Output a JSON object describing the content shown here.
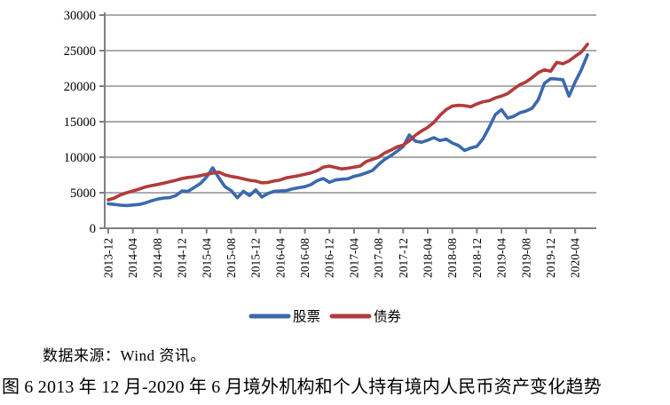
{
  "chart_data": {
    "type": "line",
    "title": "",
    "xlabel": "",
    "ylabel": "",
    "ylim": [
      0,
      30000
    ],
    "y_ticks": [
      0,
      5000,
      10000,
      15000,
      20000,
      25000,
      30000
    ],
    "x_tick_every": 4,
    "grid": true,
    "legend_position": "bottom",
    "x": [
      "2013-12",
      "2014-01",
      "2014-02",
      "2014-03",
      "2014-04",
      "2014-05",
      "2014-06",
      "2014-07",
      "2014-08",
      "2014-09",
      "2014-10",
      "2014-11",
      "2014-12",
      "2015-01",
      "2015-02",
      "2015-03",
      "2015-04",
      "2015-05",
      "2015-06",
      "2015-07",
      "2015-08",
      "2015-09",
      "2015-10",
      "2015-11",
      "2015-12",
      "2016-01",
      "2016-02",
      "2016-03",
      "2016-04",
      "2016-05",
      "2016-06",
      "2016-07",
      "2016-08",
      "2016-09",
      "2016-10",
      "2016-11",
      "2016-12",
      "2017-01",
      "2017-02",
      "2017-03",
      "2017-04",
      "2017-05",
      "2017-06",
      "2017-07",
      "2017-08",
      "2017-09",
      "2017-10",
      "2017-11",
      "2017-12",
      "2018-01",
      "2018-02",
      "2018-03",
      "2018-04",
      "2018-05",
      "2018-06",
      "2018-07",
      "2018-08",
      "2018-09",
      "2018-10",
      "2018-11",
      "2018-12",
      "2019-01",
      "2019-02",
      "2019-03",
      "2019-04",
      "2019-05",
      "2019-06",
      "2019-07",
      "2019-08",
      "2019-09",
      "2019-10",
      "2019-11",
      "2019-12",
      "2020-01",
      "2020-02",
      "2020-03",
      "2020-04",
      "2020-05",
      "2020-06"
    ],
    "series": [
      {
        "name": "股票",
        "color": "#3B69AD",
        "values": [
          3450,
          3350,
          3250,
          3200,
          3280,
          3350,
          3550,
          3850,
          4100,
          4250,
          4300,
          4600,
          5250,
          5200,
          5750,
          6300,
          7200,
          8500,
          7100,
          5850,
          5300,
          4300,
          5200,
          4600,
          5400,
          4400,
          4900,
          5200,
          5250,
          5300,
          5550,
          5700,
          5850,
          6150,
          6700,
          7000,
          6460,
          6800,
          6900,
          6960,
          7300,
          7500,
          7800,
          8130,
          8960,
          9700,
          10210,
          10840,
          11500,
          13130,
          12250,
          12100,
          12400,
          12750,
          12350,
          12550,
          12000,
          11650,
          10950,
          11300,
          11520,
          12600,
          14200,
          16000,
          16700,
          15500,
          15750,
          16250,
          16500,
          16900,
          18100,
          20400,
          21050,
          21000,
          20900,
          18600,
          20600,
          22300,
          24400
        ]
      },
      {
        "name": "债券",
        "color": "#B23B3C",
        "values": [
          4000,
          4250,
          4700,
          5000,
          5250,
          5500,
          5800,
          6000,
          6150,
          6350,
          6550,
          6750,
          7000,
          7150,
          7250,
          7400,
          7600,
          7750,
          7900,
          7500,
          7300,
          7150,
          6950,
          6750,
          6650,
          6400,
          6450,
          6650,
          6800,
          7100,
          7250,
          7400,
          7600,
          7800,
          8100,
          8600,
          8750,
          8550,
          8350,
          8450,
          8600,
          8750,
          9400,
          9700,
          10000,
          10600,
          11000,
          11450,
          11700,
          12300,
          13100,
          13700,
          14200,
          14900,
          15900,
          16700,
          17200,
          17300,
          17250,
          17100,
          17500,
          17800,
          17950,
          18350,
          18600,
          18950,
          19600,
          20200,
          20600,
          21200,
          21900,
          22300,
          22100,
          23350,
          23150,
          23550,
          24200,
          24800,
          25900
        ]
      }
    ]
  },
  "legend": {
    "item1": "股票",
    "item2": "债券"
  },
  "source_note": "数据来源：Wind 资讯。",
  "caption": "图 6 2013 年 12 月-2020 年 6 月境外机构和个人持有境内人民币资产变化趋势",
  "colors": {
    "stocks_line": "#3B69AD",
    "bonds_line": "#B23B3C",
    "gridline": "#8F8F8F",
    "axis": "#7F7F7F",
    "text": "#000000",
    "background": "#FFFFFF"
  }
}
